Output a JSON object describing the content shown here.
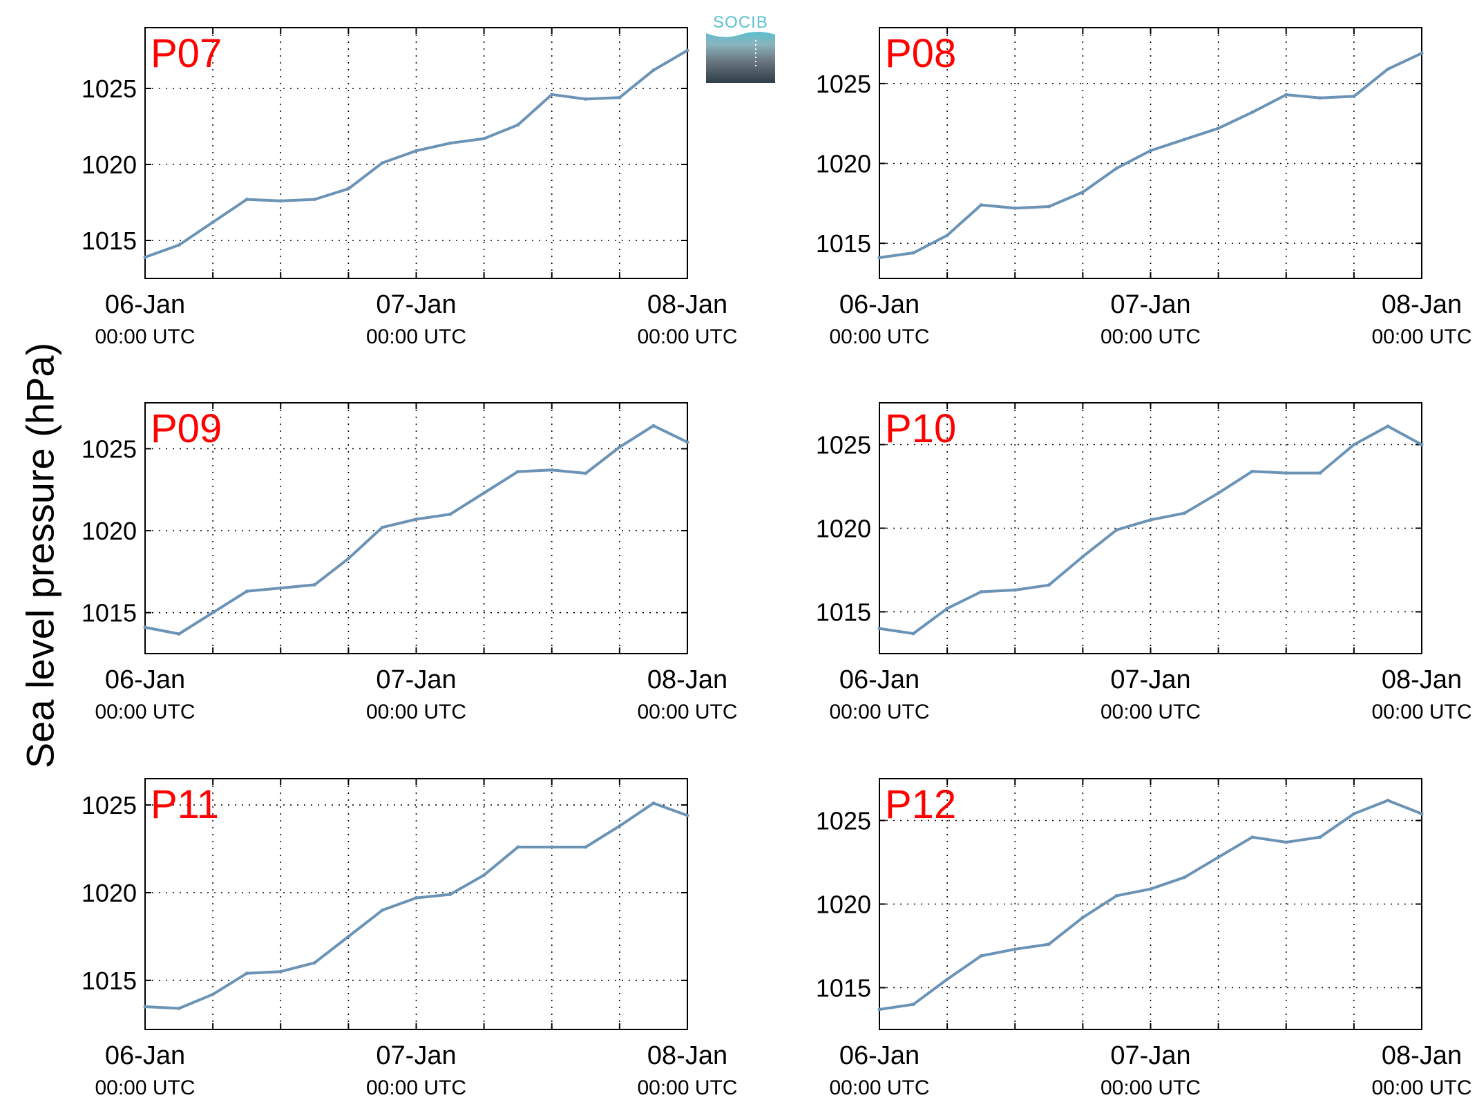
{
  "figure": {
    "ylabel": "Sea level pressure (hPa)",
    "logo_text": "SOCIB"
  },
  "colors": {
    "line": "#6b93b5",
    "panel_title": "#ff0000",
    "logo_top": "#5bc0cf",
    "logo_bottom": "#2f3e48"
  },
  "chart_data": [
    {
      "type": "line",
      "title": "P07",
      "xlim": [
        "06-Jan 00:00 UTC",
        "08-Jan 00:00 UTC"
      ],
      "xticks": [
        {
          "day": "06-Jan",
          "time": "00:00 UTC"
        },
        {
          "day": "07-Jan",
          "time": "00:00 UTC"
        },
        {
          "day": "08-Jan",
          "time": "00:00 UTC"
        }
      ],
      "yticks": [
        1015,
        1020,
        1025
      ],
      "ylim": [
        1012.5,
        1029
      ],
      "grid": true,
      "series": [
        {
          "x": [
            "06-Jan 00:00",
            "06-Jan 03:00",
            "06-Jan 06:00",
            "06-Jan 09:00",
            "06-Jan 12:00",
            "06-Jan 15:00",
            "06-Jan 18:00",
            "06-Jan 21:00",
            "07-Jan 00:00",
            "07-Jan 03:00",
            "07-Jan 06:00",
            "07-Jan 09:00",
            "07-Jan 12:00",
            "07-Jan 15:00",
            "07-Jan 18:00",
            "07-Jan 21:00",
            "08-Jan 00:00"
          ],
          "y": [
            1013.9,
            1014.7,
            1016.2,
            1017.7,
            1017.6,
            1017.7,
            1018.4,
            1020.1,
            1020.9,
            1021.4,
            1021.7,
            1022.6,
            1024.6,
            1024.3,
            1024.4,
            1026.2,
            1027.5
          ]
        }
      ]
    },
    {
      "type": "line",
      "title": "P08",
      "xlim": [
        "06-Jan 00:00 UTC",
        "08-Jan 00:00 UTC"
      ],
      "xticks": [
        {
          "day": "06-Jan",
          "time": "00:00 UTC"
        },
        {
          "day": "07-Jan",
          "time": "00:00 UTC"
        },
        {
          "day": "08-Jan",
          "time": "00:00 UTC"
        }
      ],
      "yticks": [
        1015,
        1020,
        1025
      ],
      "ylim": [
        1012.8,
        1028.5
      ],
      "grid": true,
      "series": [
        {
          "x": [
            "06-Jan 00:00",
            "06-Jan 03:00",
            "06-Jan 06:00",
            "06-Jan 09:00",
            "06-Jan 12:00",
            "06-Jan 15:00",
            "06-Jan 18:00",
            "06-Jan 21:00",
            "07-Jan 00:00",
            "07-Jan 03:00",
            "07-Jan 06:00",
            "07-Jan 09:00",
            "07-Jan 12:00",
            "07-Jan 15:00",
            "07-Jan 18:00",
            "07-Jan 21:00",
            "08-Jan 00:00"
          ],
          "y": [
            1014.1,
            1014.4,
            1015.5,
            1017.4,
            1017.2,
            1017.3,
            1018.2,
            1019.7,
            1020.8,
            1021.5,
            1022.2,
            1023.2,
            1024.3,
            1024.1,
            1024.2,
            1025.9,
            1026.9
          ]
        }
      ]
    },
    {
      "type": "line",
      "title": "P09",
      "xlim": [
        "06-Jan 00:00 UTC",
        "08-Jan 00:00 UTC"
      ],
      "xticks": [
        {
          "day": "06-Jan",
          "time": "00:00 UTC"
        },
        {
          "day": "07-Jan",
          "time": "00:00 UTC"
        },
        {
          "day": "08-Jan",
          "time": "00:00 UTC"
        }
      ],
      "yticks": [
        1015,
        1020,
        1025
      ],
      "ylim": [
        1012.5,
        1027.8
      ],
      "grid": true,
      "series": [
        {
          "x": [
            "06-Jan 00:00",
            "06-Jan 03:00",
            "06-Jan 06:00",
            "06-Jan 09:00",
            "06-Jan 12:00",
            "06-Jan 15:00",
            "06-Jan 18:00",
            "06-Jan 21:00",
            "07-Jan 00:00",
            "07-Jan 03:00",
            "07-Jan 06:00",
            "07-Jan 09:00",
            "07-Jan 12:00",
            "07-Jan 15:00",
            "07-Jan 18:00",
            "07-Jan 21:00",
            "08-Jan 00:00"
          ],
          "y": [
            1014.1,
            1013.7,
            1015.0,
            1016.3,
            1016.5,
            1016.7,
            1018.3,
            1020.2,
            1020.7,
            1021.0,
            1022.3,
            1023.6,
            1023.7,
            1023.5,
            1025.1,
            1026.4,
            1025.4
          ]
        }
      ]
    },
    {
      "type": "line",
      "title": "P10",
      "xlim": [
        "06-Jan 00:00 UTC",
        "08-Jan 00:00 UTC"
      ],
      "xticks": [
        {
          "day": "06-Jan",
          "time": "00:00 UTC"
        },
        {
          "day": "07-Jan",
          "time": "00:00 UTC"
        },
        {
          "day": "08-Jan",
          "time": "00:00 UTC"
        }
      ],
      "yticks": [
        1015,
        1020,
        1025
      ],
      "ylim": [
        1012.5,
        1027.5
      ],
      "grid": true,
      "series": [
        {
          "x": [
            "06-Jan 00:00",
            "06-Jan 03:00",
            "06-Jan 06:00",
            "06-Jan 09:00",
            "06-Jan 12:00",
            "06-Jan 15:00",
            "06-Jan 18:00",
            "06-Jan 21:00",
            "07-Jan 00:00",
            "07-Jan 03:00",
            "07-Jan 06:00",
            "07-Jan 09:00",
            "07-Jan 12:00",
            "07-Jan 15:00",
            "07-Jan 18:00",
            "07-Jan 21:00",
            "08-Jan 00:00"
          ],
          "y": [
            1014.0,
            1013.7,
            1015.2,
            1016.2,
            1016.3,
            1016.6,
            1018.3,
            1019.9,
            1020.5,
            1020.9,
            1022.1,
            1023.4,
            1023.3,
            1023.3,
            1025.0,
            1026.1,
            1025.0
          ]
        }
      ]
    },
    {
      "type": "line",
      "title": "P11",
      "xlim": [
        "06-Jan 00:00 UTC",
        "08-Jan 00:00 UTC"
      ],
      "xticks": [
        {
          "day": "06-Jan",
          "time": "00:00 UTC"
        },
        {
          "day": "07-Jan",
          "time": "00:00 UTC"
        },
        {
          "day": "08-Jan",
          "time": "00:00 UTC"
        }
      ],
      "yticks": [
        1015,
        1020,
        1025
      ],
      "ylim": [
        1012.2,
        1026.5
      ],
      "grid": true,
      "series": [
        {
          "x": [
            "06-Jan 00:00",
            "06-Jan 03:00",
            "06-Jan 06:00",
            "06-Jan 09:00",
            "06-Jan 12:00",
            "06-Jan 15:00",
            "06-Jan 18:00",
            "06-Jan 21:00",
            "07-Jan 00:00",
            "07-Jan 03:00",
            "07-Jan 06:00",
            "07-Jan 09:00",
            "07-Jan 12:00",
            "07-Jan 15:00",
            "07-Jan 18:00",
            "07-Jan 21:00",
            "08-Jan 00:00"
          ],
          "y": [
            1013.5,
            1013.4,
            1014.2,
            1015.4,
            1015.5,
            1016.0,
            1017.5,
            1019.0,
            1019.7,
            1019.9,
            1021.0,
            1022.6,
            1022.6,
            1022.6,
            1023.8,
            1025.1,
            1024.4
          ]
        }
      ]
    },
    {
      "type": "line",
      "title": "P12",
      "xlim": [
        "06-Jan 00:00 UTC",
        "08-Jan 00:00 UTC"
      ],
      "xticks": [
        {
          "day": "06-Jan",
          "time": "00:00 UTC"
        },
        {
          "day": "07-Jan",
          "time": "00:00 UTC"
        },
        {
          "day": "08-Jan",
          "time": "00:00 UTC"
        }
      ],
      "yticks": [
        1015,
        1020,
        1025
      ],
      "ylim": [
        1012.5,
        1027.5
      ],
      "grid": true,
      "series": [
        {
          "x": [
            "06-Jan 00:00",
            "06-Jan 03:00",
            "06-Jan 06:00",
            "06-Jan 09:00",
            "06-Jan 12:00",
            "06-Jan 15:00",
            "06-Jan 18:00",
            "06-Jan 21:00",
            "07-Jan 00:00",
            "07-Jan 03:00",
            "07-Jan 06:00",
            "07-Jan 09:00",
            "07-Jan 12:00",
            "07-Jan 15:00",
            "07-Jan 18:00",
            "07-Jan 21:00",
            "08-Jan 00:00"
          ],
          "y": [
            1013.7,
            1014.0,
            1015.5,
            1016.9,
            1017.3,
            1017.6,
            1019.2,
            1020.5,
            1020.9,
            1021.6,
            1022.8,
            1024.0,
            1023.7,
            1024.0,
            1025.4,
            1026.2,
            1025.4
          ]
        }
      ]
    }
  ]
}
